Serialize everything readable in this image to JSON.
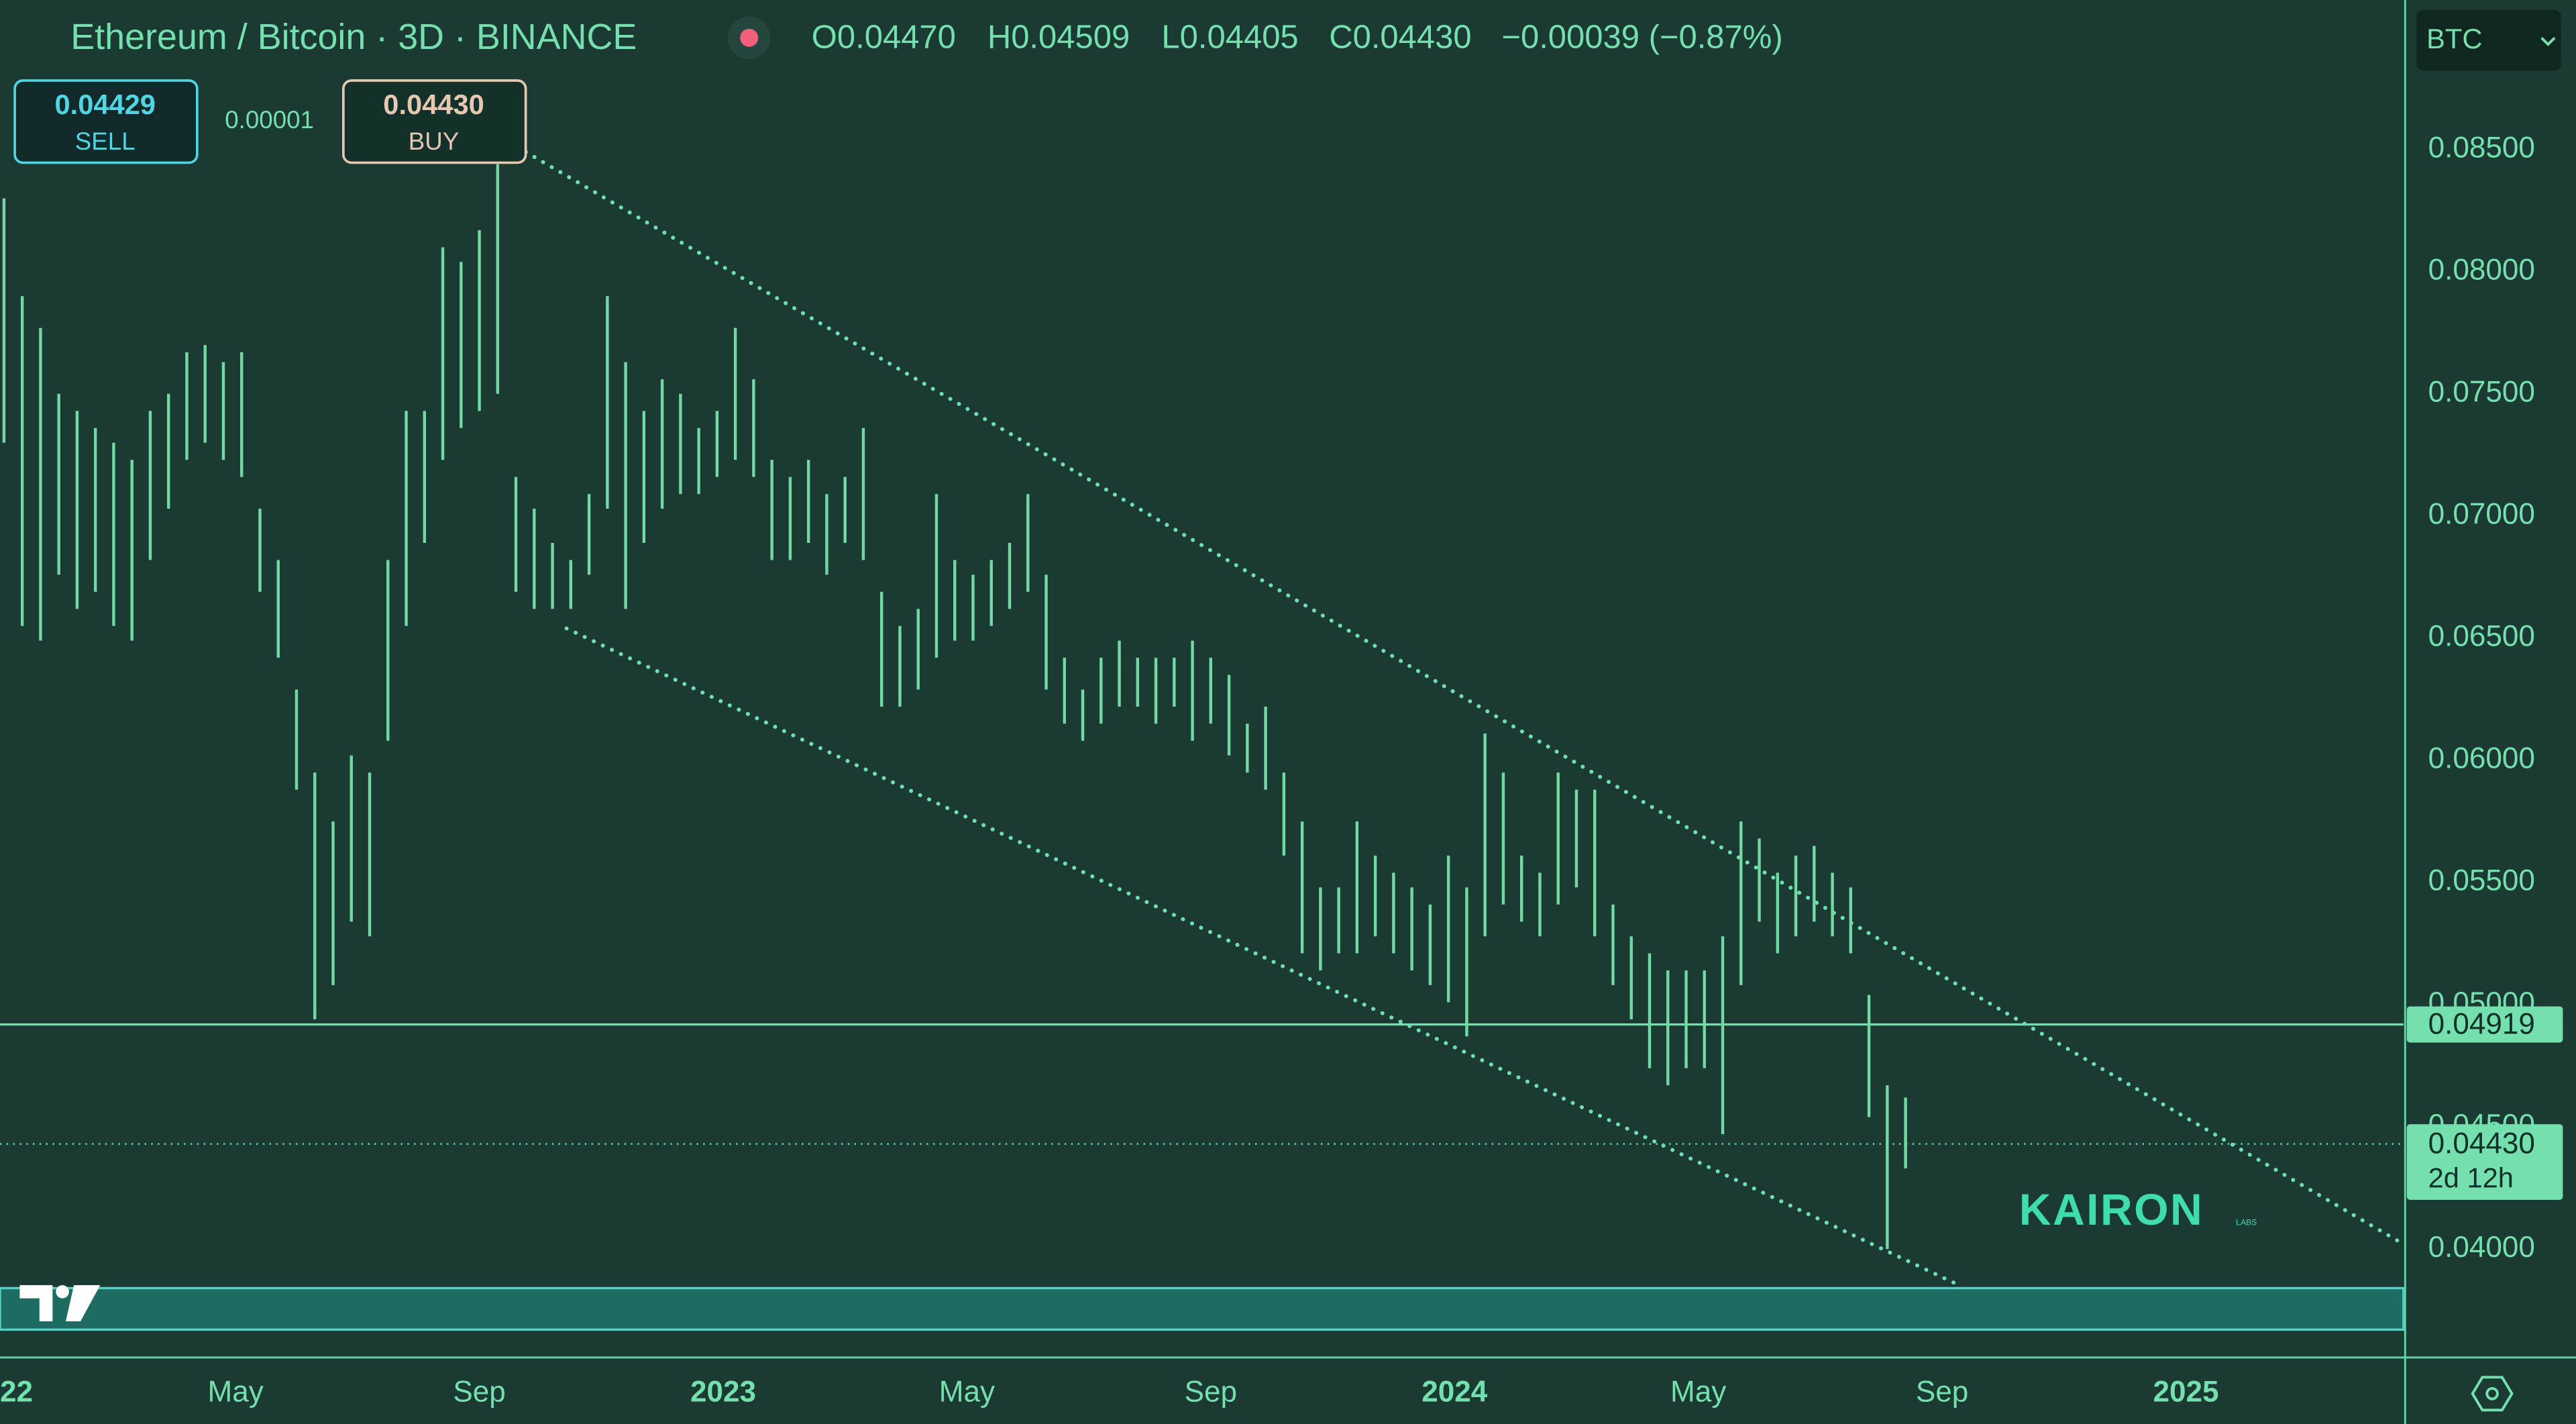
{
  "chart_data": {
    "type": "ohlc",
    "title": "Ethereum / Bitcoin · 3D · BINANCE",
    "ohlc_legend": [
      "O0.04470",
      "H0.04509",
      "L0.04405",
      "C0.04430",
      "−0.00039 (−0.87%)"
    ],
    "quote": {
      "sell": "0.04429",
      "sell_label": "SELL",
      "spread": "0.00001",
      "buy": "0.04430",
      "buy_label": "BUY"
    },
    "currency": "BTC",
    "color": "#72d9a2",
    "x": [
      0.2,
      0.5,
      0.8,
      1.1,
      1.4,
      1.7,
      2,
      2.3,
      2.6,
      2.9,
      3.2,
      3.5,
      3.8,
      4.1,
      4.4,
      4.7,
      5,
      5.3,
      5.6,
      5.9,
      6.2,
      6.5,
      6.8,
      7.1,
      7.4,
      7.7,
      8,
      8.3,
      8.6,
      8.9,
      9.2,
      9.5,
      9.8,
      10.1,
      10.4,
      10.7,
      11,
      11.3,
      11.6,
      11.9,
      12.2,
      12.5,
      12.8,
      13.1,
      13.4,
      13.7,
      14,
      14.3,
      14.6,
      14.9,
      15.2,
      15.5,
      15.8,
      16.1,
      16.4,
      16.7,
      17,
      17.3,
      17.6,
      17.9,
      18.2,
      18.5,
      18.8,
      19.1,
      19.4,
      19.7,
      20,
      20.3,
      20.6,
      20.9,
      21.2,
      21.5,
      21.8,
      22.1,
      22.4,
      22.7,
      23,
      23.3,
      23.6,
      23.9,
      24.2,
      24.5,
      24.8,
      25.1,
      25.4,
      25.7,
      26,
      26.3,
      26.6,
      26.9,
      27.2,
      27.5,
      27.8,
      28.1,
      28.4,
      28.7,
      29,
      29.3,
      29.6,
      29.9,
      30.2,
      30.5,
      30.8,
      31.1,
      31.4
    ],
    "high": [
      0.083,
      0.079,
      0.0777,
      0.075,
      0.0743,
      0.0736,
      0.073,
      0.0723,
      0.0743,
      0.075,
      0.0767,
      0.077,
      0.0763,
      0.0767,
      0.0703,
      0.0682,
      0.0629,
      0.0595,
      0.0575,
      0.0602,
      0.0595,
      0.0682,
      0.0743,
      0.0743,
      0.081,
      0.0804,
      0.0817,
      0.0844,
      0.0716,
      0.0703,
      0.0689,
      0.0682,
      0.0709,
      0.079,
      0.0763,
      0.0743,
      0.0756,
      0.075,
      0.0736,
      0.0743,
      0.0777,
      0.0756,
      0.0723,
      0.0716,
      0.0723,
      0.0709,
      0.0716,
      0.0736,
      0.0669,
      0.0655,
      0.0662,
      0.0709,
      0.0682,
      0.0676,
      0.0682,
      0.0689,
      0.0709,
      0.0676,
      0.0642,
      0.0629,
      0.0642,
      0.0649,
      0.0642,
      0.0642,
      0.0642,
      0.0649,
      0.0642,
      0.0635,
      0.0615,
      0.0622,
      0.0595,
      0.0575,
      0.0548,
      0.0548,
      0.0575,
      0.0561,
      0.0554,
      0.0548,
      0.0541,
      0.0561,
      0.0548,
      0.0611,
      0.0595,
      0.0561,
      0.0554,
      0.0595,
      0.0588,
      0.0588,
      0.0541,
      0.0528,
      0.0521,
      0.0514,
      0.0514,
      0.0514,
      0.0528,
      0.0575,
      0.0568,
      0.0554,
      0.0561,
      0.0565,
      0.0554,
      0.0548,
      0.0504,
      0.0467,
      0.0462
    ],
    "low": [
      0.073,
      0.0655,
      0.0649,
      0.0676,
      0.0662,
      0.0669,
      0.0655,
      0.0649,
      0.0682,
      0.0703,
      0.0723,
      0.073,
      0.0723,
      0.0716,
      0.0669,
      0.0642,
      0.0588,
      0.0494,
      0.0508,
      0.0534,
      0.0528,
      0.0608,
      0.0655,
      0.0689,
      0.0723,
      0.0736,
      0.0743,
      0.075,
      0.0669,
      0.0662,
      0.0662,
      0.0662,
      0.0676,
      0.0703,
      0.0662,
      0.0689,
      0.0703,
      0.0709,
      0.0709,
      0.0716,
      0.0723,
      0.0716,
      0.0682,
      0.0682,
      0.0689,
      0.0676,
      0.0689,
      0.0682,
      0.0622,
      0.0622,
      0.0629,
      0.0642,
      0.0649,
      0.0649,
      0.0655,
      0.0662,
      0.0669,
      0.0629,
      0.0615,
      0.0608,
      0.0615,
      0.0622,
      0.0622,
      0.0615,
      0.0622,
      0.0608,
      0.0615,
      0.0602,
      0.0595,
      0.0588,
      0.0561,
      0.0521,
      0.0514,
      0.0521,
      0.0521,
      0.0528,
      0.0521,
      0.0514,
      0.0508,
      0.0501,
      0.0487,
      0.0528,
      0.0541,
      0.0534,
      0.0528,
      0.0541,
      0.0548,
      0.0528,
      0.0508,
      0.0494,
      0.0474,
      0.0467,
      0.0474,
      0.0474,
      0.0447,
      0.0508,
      0.0534,
      0.0521,
      0.0528,
      0.0534,
      0.0528,
      0.0521,
      0.0454,
      0.04,
      0.0433
    ],
    "xlim": [
      0.135,
      39.57
    ],
    "xticks": [
      {
        "value": 0,
        "label": "22"
      },
      {
        "value": 4,
        "label": "May"
      },
      {
        "value": 8,
        "label": "Sep"
      },
      {
        "value": 12,
        "label": "2023"
      },
      {
        "value": 16,
        "label": "May"
      },
      {
        "value": 20,
        "label": "Sep"
      },
      {
        "value": 24,
        "label": "2024"
      },
      {
        "value": 28,
        "label": "May"
      },
      {
        "value": 32,
        "label": "Sep"
      },
      {
        "value": 36,
        "label": "2025"
      }
    ],
    "ylim": [
      0.03556,
      0.09112
    ],
    "yticks": [
      {
        "value": 0.04,
        "label": "0.04000"
      },
      {
        "value": 0.045,
        "label": "0.04500"
      },
      {
        "value": 0.05,
        "label": "0.05000"
      },
      {
        "value": 0.055,
        "label": "0.05500"
      },
      {
        "value": 0.06,
        "label": "0.06000"
      },
      {
        "value": 0.065,
        "label": "0.06500"
      },
      {
        "value": 0.07,
        "label": "0.07000"
      },
      {
        "value": 0.075,
        "label": "0.07500"
      },
      {
        "value": 0.08,
        "label": "0.08000"
      },
      {
        "value": 0.085,
        "label": "0.08500"
      }
    ],
    "grid": false,
    "trendlines": [
      {
        "x": [
          8.76,
          39.57
        ],
        "y": [
          0.0849,
          0.0402
        ]
      },
      {
        "x": [
          9.43,
          32.21
        ],
        "y": [
          0.0654,
          0.0386
        ]
      }
    ],
    "zone": [
      0.0367,
      0.0384
    ],
    "hlines": [
      {
        "value": 0.04919,
        "label": "0.04919"
      }
    ],
    "last_price": {
      "value": 0.0443,
      "label": "0.04430",
      "countdown": "2d 12h"
    },
    "watermark": "KAIRON",
    "watermark_sub": "LABS"
  }
}
